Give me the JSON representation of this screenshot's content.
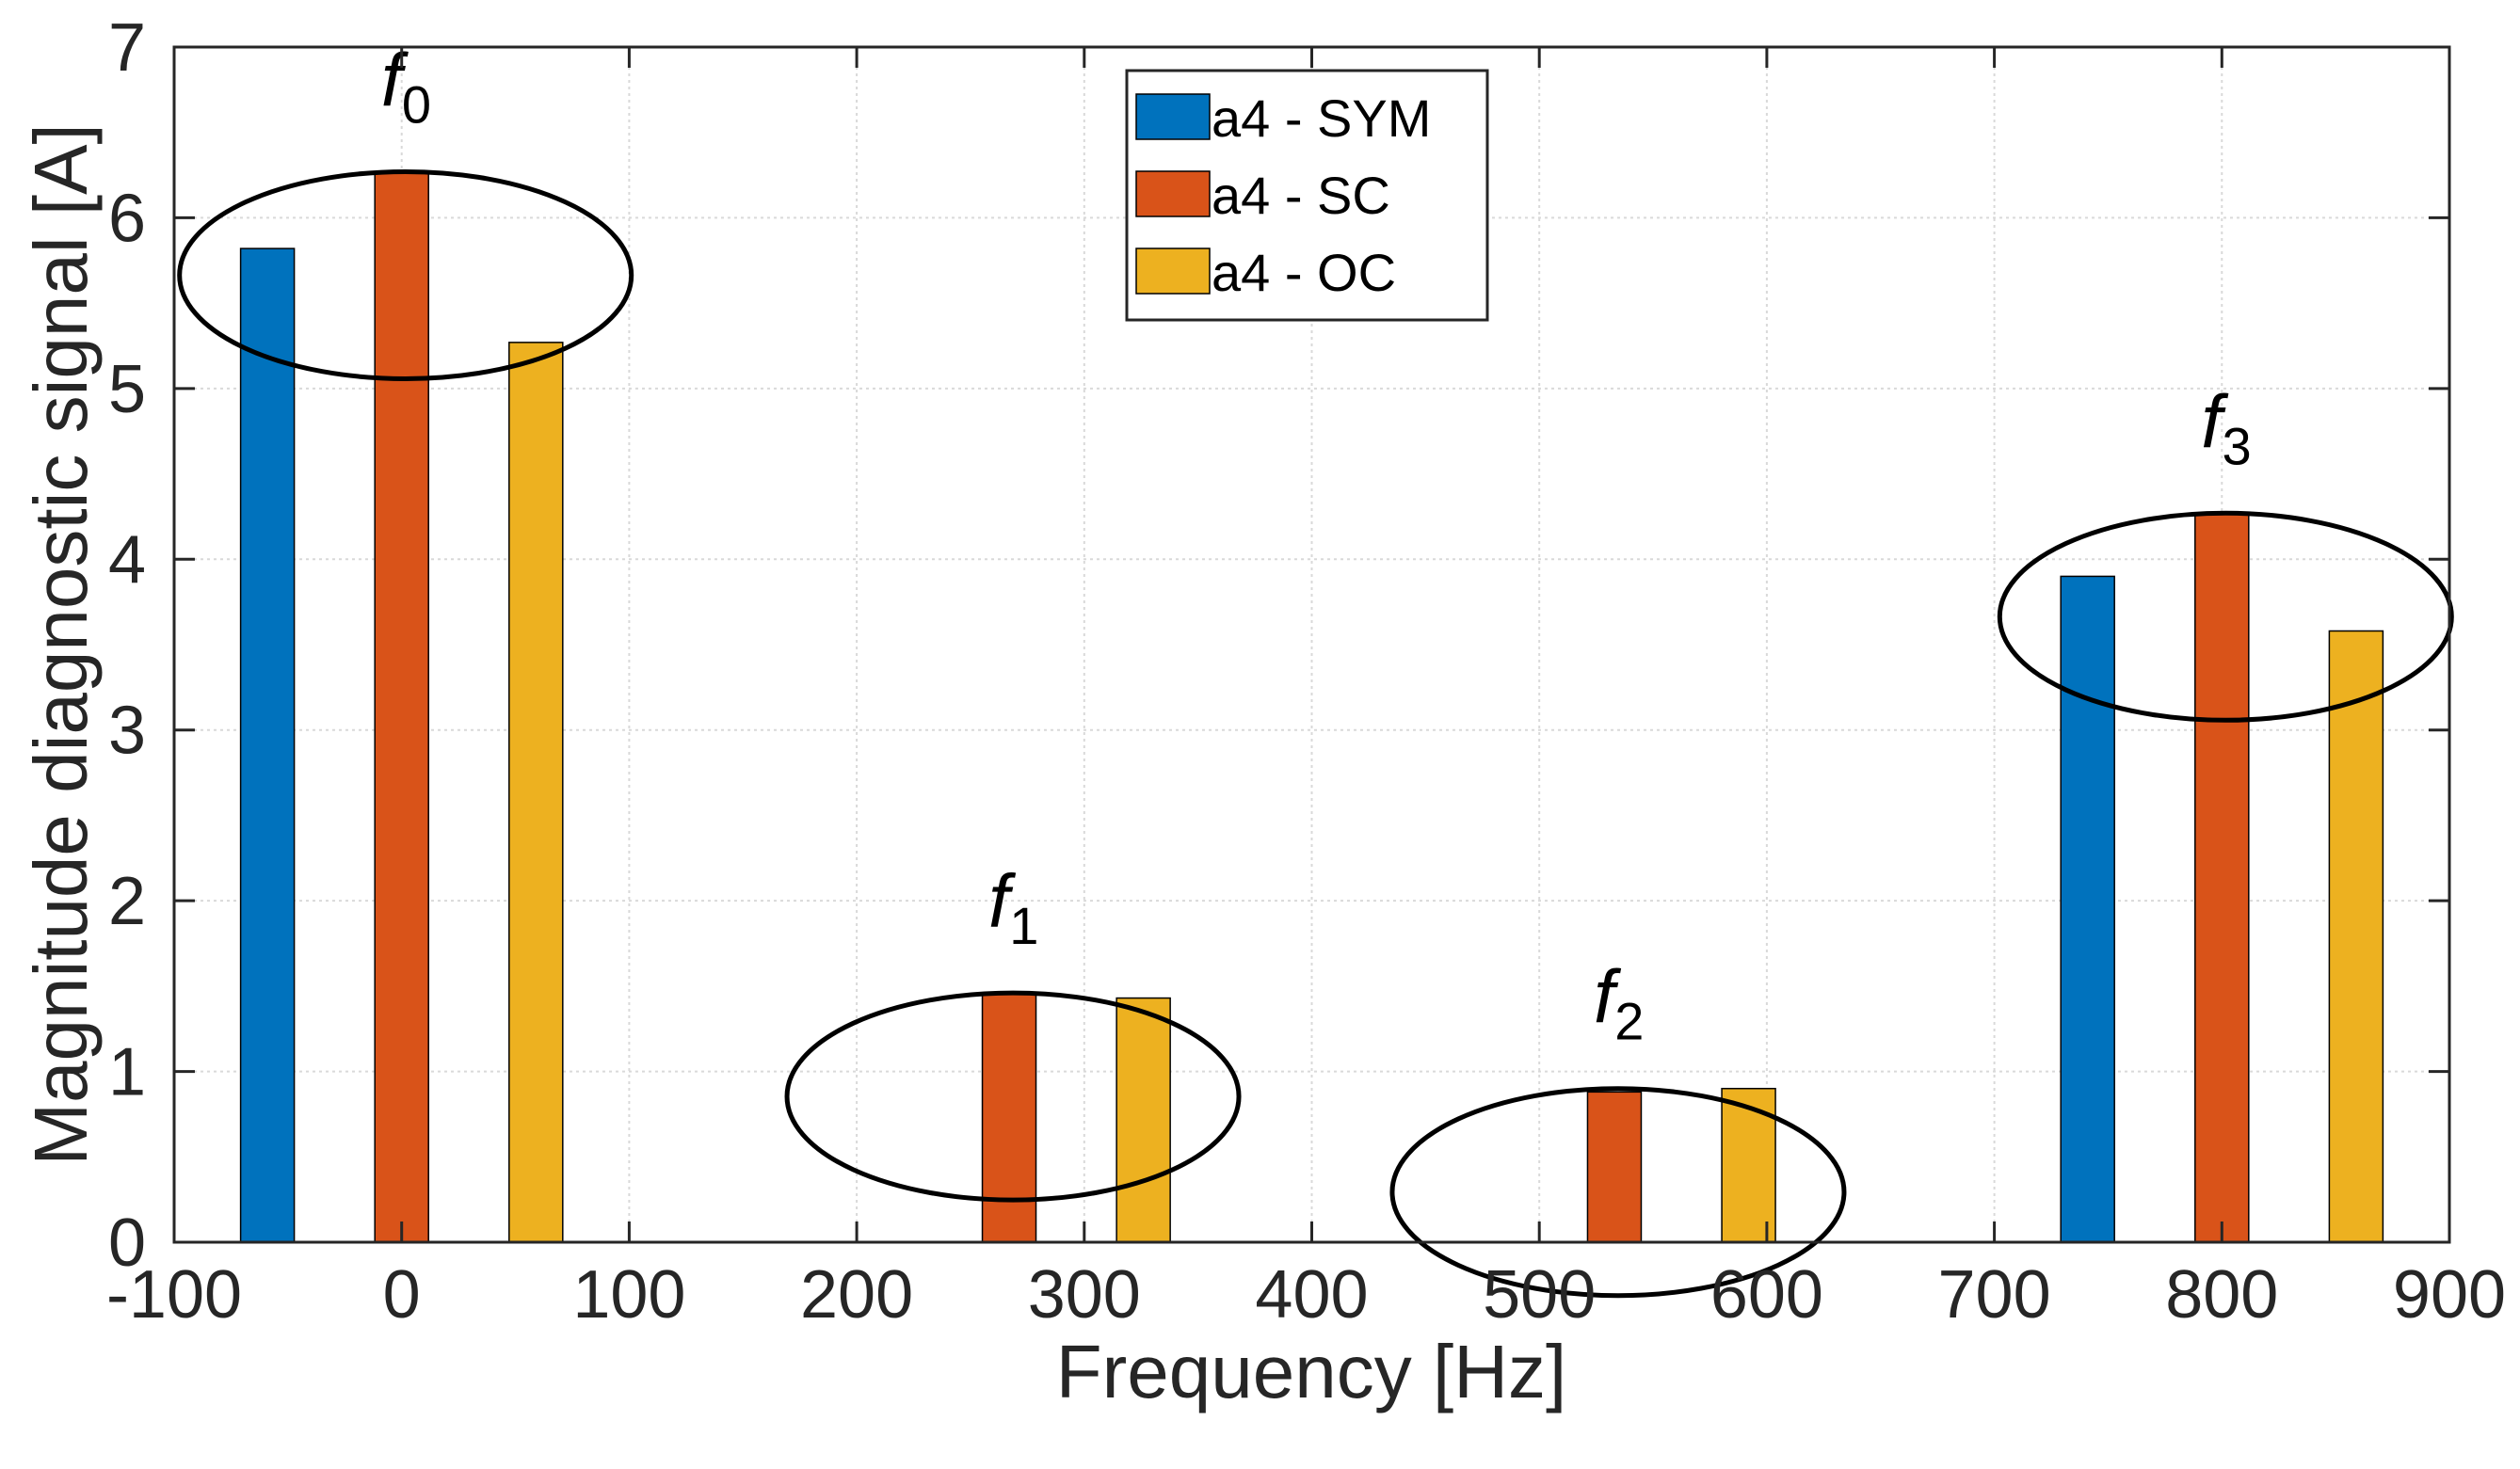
{
  "chart_data": {
    "type": "bar",
    "xlabel": "Frequency  [Hz]",
    "ylabel": "Magnitude diagnostic signal [A]",
    "xlim": [
      -100,
      900
    ],
    "ylim": [
      0,
      7
    ],
    "xticks": [
      -100,
      0,
      100,
      200,
      300,
      400,
      500,
      600,
      700,
      800,
      900
    ],
    "yticks": [
      0,
      1,
      2,
      3,
      4,
      5,
      6,
      7
    ],
    "grid": true,
    "legend_position": "top-center",
    "colors": {
      "a4 - SYM": "#0072BD",
      "a4 - SC": "#D95319",
      "a4 - OC": "#EDB120"
    },
    "groups": [
      {
        "label": "f",
        "sub": "0",
        "center": 0
      },
      {
        "label": "f",
        "sub": "1",
        "center": 267
      },
      {
        "label": "f",
        "sub": "2",
        "center": 533
      },
      {
        "label": "f",
        "sub": "3",
        "center": 800
      }
    ],
    "series": [
      {
        "name": "a4 - SYM",
        "x": [
          -59,
          208,
          475,
          741
        ],
        "values": [
          5.82,
          0.0,
          0.0,
          3.9
        ]
      },
      {
        "name": "a4 - SC",
        "x": [
          0,
          267,
          533,
          800
        ],
        "values": [
          6.27,
          1.46,
          0.88,
          4.27
        ]
      },
      {
        "name": "a4 - OC",
        "x": [
          59,
          326,
          592,
          859
        ],
        "values": [
          5.27,
          1.43,
          0.9,
          3.58
        ]
      }
    ]
  }
}
